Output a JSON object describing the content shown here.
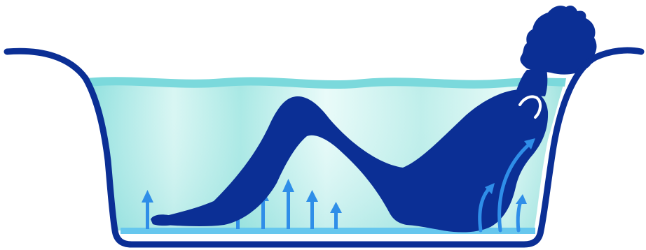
{
  "illustration": {
    "subject": "bathtub-hydrotherapy",
    "icons": [
      "bathtub-icon",
      "bather-silhouette-icon",
      "air-bubble-arrow-icon",
      "back-jet-arrow-icon",
      "neck-jet-icon"
    ],
    "colors": {
      "tub_outline": "#0b2f95",
      "bather": "#0b2f95",
      "water_light": "#dff8f6",
      "water_mid": "#9fe6e2",
      "water_surface": "#7bd9dc",
      "arrows": "#2f8ee8",
      "floor_jet_bar": "#66c7ee",
      "background": "#ffffff"
    },
    "floor_arrows_count": 7,
    "back_jets_count": 3
  }
}
